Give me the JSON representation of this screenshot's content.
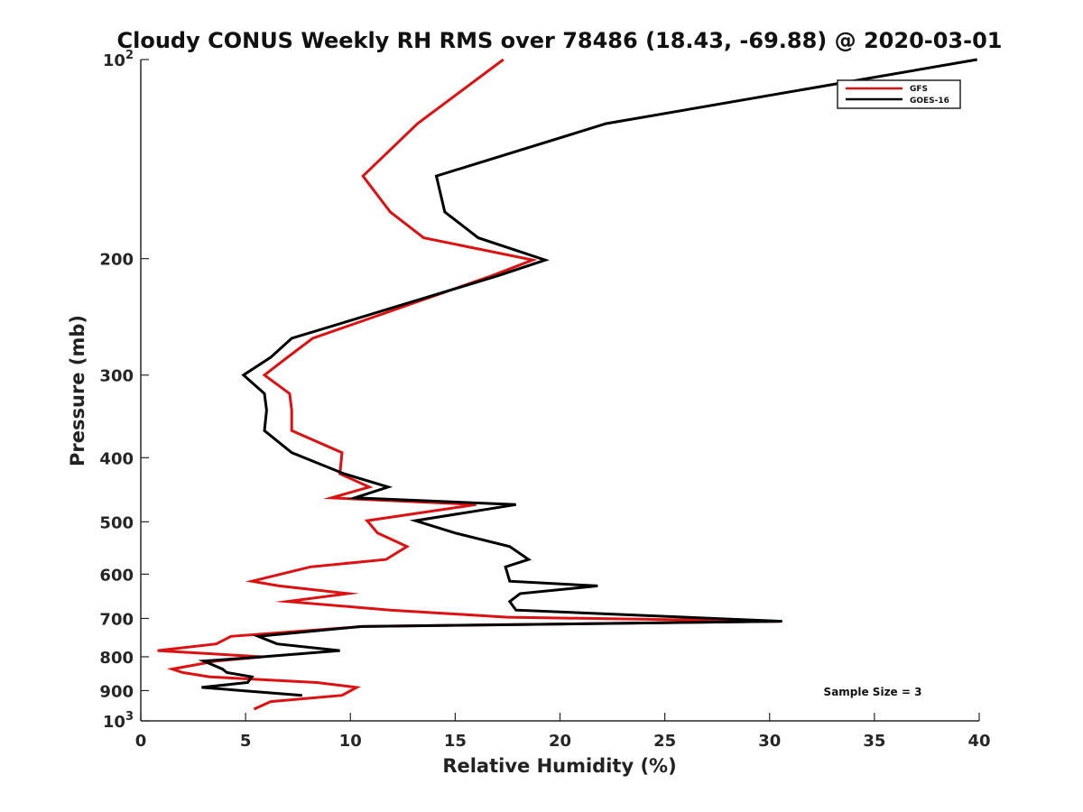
{
  "chart_data": {
    "type": "line",
    "title": "Cloudy CONUS Weekly RH RMS over 78486 (18.43, -69.88) @ 2020-03-01",
    "xlabel": "Relative Humidity (%)",
    "ylabel": "Pressure (mb)",
    "xlim": [
      0,
      40
    ],
    "ylim": [
      100,
      1000
    ],
    "y_scale": "log",
    "y_reversed": true,
    "grid": false,
    "legend_position": "top-right",
    "x_ticks": [
      0,
      5,
      10,
      15,
      20,
      25,
      30,
      35,
      40
    ],
    "y_ticks": [
      {
        "value": 100,
        "label": "10",
        "exp": "2"
      },
      {
        "value": 200,
        "label": "200",
        "exp": ""
      },
      {
        "value": 300,
        "label": "300",
        "exp": ""
      },
      {
        "value": 400,
        "label": "400",
        "exp": ""
      },
      {
        "value": 500,
        "label": "500",
        "exp": ""
      },
      {
        "value": 600,
        "label": "600",
        "exp": ""
      },
      {
        "value": 700,
        "label": "700",
        "exp": ""
      },
      {
        "value": 800,
        "label": "800",
        "exp": ""
      },
      {
        "value": 900,
        "label": "900",
        "exp": ""
      },
      {
        "value": 1000,
        "label": "10",
        "exp": "3"
      }
    ],
    "annotation": "Sample Size = 3",
    "series": [
      {
        "name": "GFS",
        "color": "#dd1111",
        "points": [
          [
            17.3,
            100
          ],
          [
            13.2,
            125
          ],
          [
            10.6,
            150
          ],
          [
            11.9,
            170
          ],
          [
            13.5,
            186
          ],
          [
            18.7,
            201
          ],
          [
            16.8,
            212
          ],
          [
            8.2,
            264
          ],
          [
            7.0,
            282
          ],
          [
            5.9,
            300
          ],
          [
            7.1,
            320
          ],
          [
            7.2,
            339
          ],
          [
            7.2,
            364
          ],
          [
            9.6,
            393
          ],
          [
            9.5,
            423
          ],
          [
            10.9,
            443
          ],
          [
            9.1,
            460
          ],
          [
            16.0,
            471
          ],
          [
            10.8,
            498
          ],
          [
            11.3,
            520
          ],
          [
            12.7,
            545
          ],
          [
            11.7,
            570
          ],
          [
            8.1,
            585
          ],
          [
            5.3,
            615
          ],
          [
            6.6,
            625
          ],
          [
            9.9,
            642
          ],
          [
            7.0,
            660
          ],
          [
            11.9,
            680
          ],
          [
            17.5,
            697
          ],
          [
            30.5,
            707
          ],
          [
            10.6,
            720
          ],
          [
            4.3,
            745
          ],
          [
            3.6,
            765
          ],
          [
            0.8,
            783
          ],
          [
            5.8,
            800
          ],
          [
            3.6,
            812
          ],
          [
            1.5,
            835
          ],
          [
            2.0,
            845
          ],
          [
            3.3,
            858
          ],
          [
            8.4,
            875
          ],
          [
            10.3,
            890
          ],
          [
            9.6,
            915
          ],
          [
            6.2,
            935
          ],
          [
            5.4,
            960
          ]
        ]
      },
      {
        "name": "GOES-16",
        "color": "#000000",
        "points": [
          [
            39.9,
            100
          ],
          [
            22.2,
            125
          ],
          [
            14.1,
            150
          ],
          [
            14.5,
            170
          ],
          [
            16.1,
            186
          ],
          [
            19.3,
            201
          ],
          [
            17.1,
            212
          ],
          [
            7.2,
            264
          ],
          [
            6.2,
            282
          ],
          [
            4.9,
            300
          ],
          [
            5.9,
            320
          ],
          [
            6.0,
            339
          ],
          [
            5.9,
            364
          ],
          [
            7.2,
            393
          ],
          [
            9.7,
            423
          ],
          [
            11.8,
            443
          ],
          [
            10.2,
            460
          ],
          [
            17.9,
            471
          ],
          [
            13.1,
            498
          ],
          [
            15.0,
            520
          ],
          [
            17.6,
            545
          ],
          [
            18.5,
            570
          ],
          [
            17.4,
            585
          ],
          [
            17.6,
            615
          ],
          [
            21.8,
            625
          ],
          [
            18.1,
            642
          ],
          [
            17.6,
            660
          ],
          [
            17.9,
            680
          ],
          [
            30.6,
            707
          ],
          [
            10.5,
            720
          ],
          [
            5.6,
            745
          ],
          [
            6.5,
            765
          ],
          [
            9.5,
            783
          ],
          [
            5.8,
            800
          ],
          [
            3.0,
            812
          ],
          [
            3.9,
            835
          ],
          [
            4.1,
            845
          ],
          [
            5.3,
            858
          ],
          [
            5.1,
            875
          ],
          [
            2.9,
            890
          ],
          [
            7.7,
            915
          ]
        ]
      }
    ]
  }
}
